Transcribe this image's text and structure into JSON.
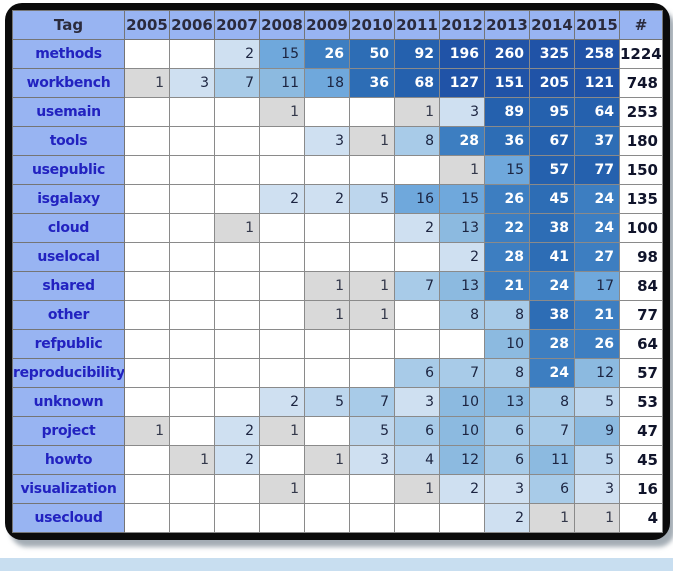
{
  "window": {
    "outside_bg": "#FFFFFF",
    "frame_color": "#0B0B0B",
    "bottom_strip_color": "#C8DEF0"
  },
  "colors": {
    "header_bg": "#98B4F2",
    "header_text": "#2B2B3D",
    "tag_bg": "#98B4F2",
    "tag_text": "#2222C0",
    "empty_bg": "#FFFFFF",
    "value_text": "#1C2440",
    "total_text": "#10142B",
    "white_text": "#FFFFFF"
  },
  "heat_scale": [
    {
      "max": 1,
      "bg": "#D9D9D9",
      "fg": "#33384A"
    },
    {
      "max": 3,
      "bg": "#CFE0F1",
      "fg": "#1C2440"
    },
    {
      "max": 5,
      "bg": "#BDD6ED",
      "fg": "#1C2440"
    },
    {
      "max": 8,
      "bg": "#A8CBE8",
      "fg": "#1C2440"
    },
    {
      "max": 13,
      "bg": "#8CBAE0",
      "fg": "#1C2440"
    },
    {
      "max": 18,
      "bg": "#6FA8DC",
      "fg": "#1C2440"
    },
    {
      "max": 30,
      "bg": "#3D7EC1",
      "fg": "#FFFFFF"
    },
    {
      "max": 50,
      "bg": "#2D6DB5",
      "fg": "#FFFFFF"
    },
    {
      "max": 95,
      "bg": "#2561AE",
      "fg": "#FFFFFF"
    },
    {
      "max": 99999,
      "bg": "#2053A7",
      "fg": "#FFFFFF"
    }
  ],
  "chart_data": {
    "type": "heatmap",
    "columns": [
      "Tag",
      "2005",
      "2006",
      "2007",
      "2008",
      "2009",
      "2010",
      "2011",
      "2012",
      "2013",
      "2014",
      "2015",
      "#"
    ],
    "rows": [
      {
        "tag": "methods",
        "values": [
          null,
          null,
          2,
          15,
          26,
          50,
          92,
          196,
          260,
          325,
          258
        ],
        "total": 1224
      },
      {
        "tag": "workbench",
        "values": [
          1,
          3,
          7,
          11,
          18,
          36,
          68,
          127,
          151,
          205,
          121
        ],
        "total": 748
      },
      {
        "tag": "usemain",
        "values": [
          null,
          null,
          null,
          1,
          null,
          null,
          1,
          3,
          89,
          95,
          64
        ],
        "total": 253
      },
      {
        "tag": "tools",
        "values": [
          null,
          null,
          null,
          null,
          3,
          1,
          8,
          28,
          36,
          67,
          37
        ],
        "total": 180
      },
      {
        "tag": "usepublic",
        "values": [
          null,
          null,
          null,
          null,
          null,
          null,
          null,
          1,
          15,
          57,
          77
        ],
        "total": 150
      },
      {
        "tag": "isgalaxy",
        "values": [
          null,
          null,
          null,
          2,
          2,
          5,
          16,
          15,
          26,
          45,
          24
        ],
        "total": 135
      },
      {
        "tag": "cloud",
        "values": [
          null,
          null,
          1,
          null,
          null,
          null,
          2,
          13,
          22,
          38,
          24
        ],
        "total": 100
      },
      {
        "tag": "uselocal",
        "values": [
          null,
          null,
          null,
          null,
          null,
          null,
          null,
          2,
          28,
          41,
          27
        ],
        "total": 98
      },
      {
        "tag": "shared",
        "values": [
          null,
          null,
          null,
          null,
          1,
          1,
          7,
          13,
          21,
          24,
          17
        ],
        "total": 84
      },
      {
        "tag": "other",
        "values": [
          null,
          null,
          null,
          null,
          1,
          1,
          null,
          8,
          8,
          38,
          21
        ],
        "total": 77
      },
      {
        "tag": "refpublic",
        "values": [
          null,
          null,
          null,
          null,
          null,
          null,
          null,
          null,
          10,
          28,
          26
        ],
        "total": 64
      },
      {
        "tag": "reproducibility",
        "values": [
          null,
          null,
          null,
          null,
          null,
          null,
          6,
          7,
          8,
          24,
          12
        ],
        "total": 57
      },
      {
        "tag": "unknown",
        "values": [
          null,
          null,
          null,
          2,
          5,
          7,
          3,
          10,
          13,
          8,
          5
        ],
        "total": 53
      },
      {
        "tag": "project",
        "values": [
          1,
          null,
          2,
          1,
          null,
          5,
          6,
          10,
          6,
          7,
          9
        ],
        "total": 47
      },
      {
        "tag": "howto",
        "values": [
          null,
          1,
          2,
          null,
          1,
          3,
          4,
          12,
          6,
          11,
          5
        ],
        "total": 45
      },
      {
        "tag": "visualization",
        "values": [
          null,
          null,
          null,
          1,
          null,
          null,
          1,
          2,
          3,
          6,
          3
        ],
        "total": 16
      },
      {
        "tag": "usecloud",
        "values": [
          null,
          null,
          null,
          null,
          null,
          null,
          null,
          null,
          2,
          1,
          1
        ],
        "total": 4
      }
    ]
  }
}
